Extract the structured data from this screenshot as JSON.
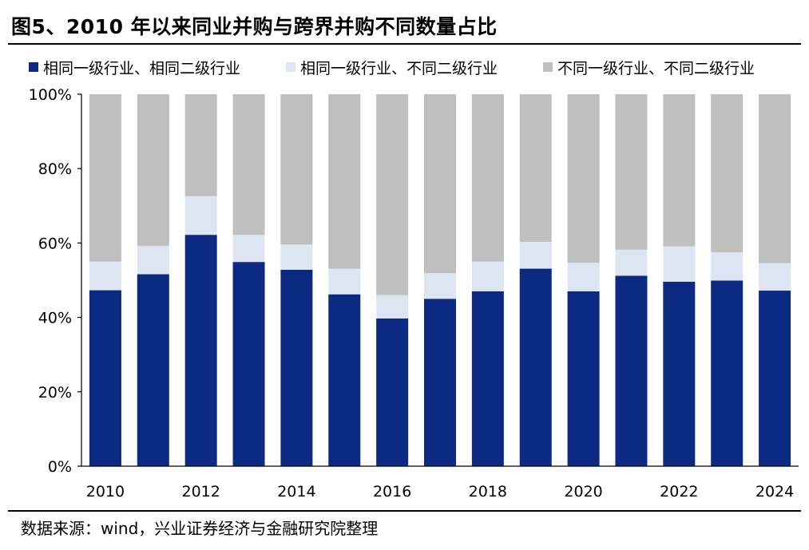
{
  "figure": {
    "title": "图5、2010 年以来同业并购与跨界并购不同数量占比",
    "source": "数据来源：wind，兴业证券经济与金融研究院整理"
  },
  "chart_data": {
    "type": "bar",
    "stacked": true,
    "categories": [
      "2010",
      "2011",
      "2012",
      "2013",
      "2014",
      "2015",
      "2016",
      "2017",
      "2018",
      "2019",
      "2020",
      "2021",
      "2022",
      "2023",
      "2024"
    ],
    "x_tick_labels": [
      "2010",
      "",
      "2012",
      "",
      "2014",
      "",
      "2016",
      "",
      "2018",
      "",
      "2020",
      "",
      "2022",
      "",
      "2024"
    ],
    "series": [
      {
        "name": "相同一级行业、相同二级行业",
        "color": "#0d2a82",
        "values": [
          47.3,
          51.6,
          62.2,
          54.9,
          52.8,
          46.2,
          39.7,
          45.0,
          47.0,
          53.1,
          47.0,
          51.2,
          49.6,
          49.9,
          47.2
        ]
      },
      {
        "name": "相同一级行业、不同二级行业",
        "color": "#dde4f2",
        "values": [
          7.7,
          7.6,
          10.4,
          7.3,
          6.8,
          6.9,
          6.3,
          6.9,
          8.0,
          7.2,
          7.7,
          7.0,
          9.5,
          7.6,
          7.4
        ]
      },
      {
        "name": "不同一级行业、不同二级行业",
        "color": "#bfbfbf",
        "values": [
          45.0,
          40.8,
          27.4,
          37.8,
          40.4,
          46.9,
          54.0,
          48.1,
          45.0,
          39.7,
          45.3,
          41.8,
          40.9,
          42.5,
          45.4
        ]
      }
    ],
    "ylim": [
      0,
      100
    ],
    "yticks": [
      "0%",
      "20%",
      "40%",
      "60%",
      "80%",
      "100%"
    ],
    "legend_position": "top",
    "grid": false
  }
}
